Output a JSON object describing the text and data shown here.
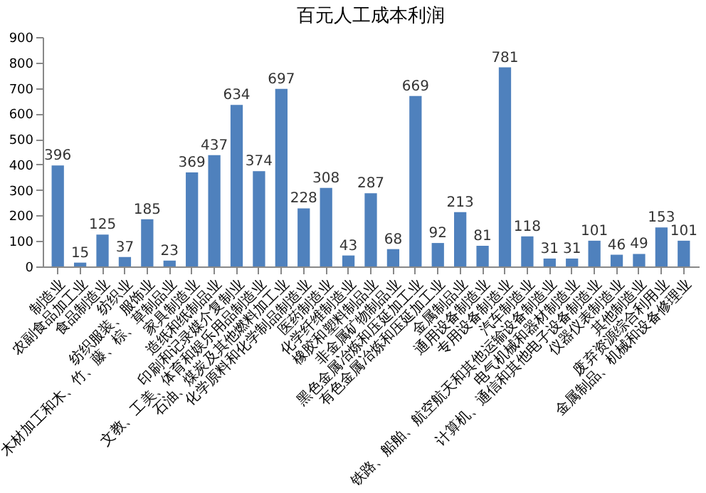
{
  "chart_data": {
    "type": "bar",
    "title": "百元人工成本利润",
    "categories": [
      "制造业",
      "农副食品加工业",
      "食品制造业",
      "纺织业",
      "纺织服装、服饰业",
      "木材加工和木、竹、藤、棕、草制品业",
      "家具制造业",
      "造纸和纸制品业",
      "印刷和记录媒介复制业",
      "文教、工美、体育和娱乐用品制造业",
      "石油、煤炭及其他燃料加工业",
      "化学原料和化学制品制造业",
      "医药制造业",
      "化学纤维制造业",
      "橡胶和塑料制品业",
      "非金属矿物制品业",
      "黑色金属冶炼和压延加工业",
      "有色金属冶炼和压延加工业",
      "金属制品业",
      "通用设备制造业",
      "专用设备制造业",
      "汽车制造业",
      "铁路、船舶、航空航天和其他运输设备制造业",
      "电气机械和器材制造业",
      "计算机、通信和其他电子设备制造业",
      "仪器仪表制造业",
      "其他制造业",
      "废弃资源综合利用业",
      "金属制品、机械和设备修理业"
    ],
    "values": [
      396,
      15,
      125,
      37,
      185,
      23,
      369,
      437,
      634,
      374,
      697,
      228,
      308,
      43,
      287,
      68,
      669,
      92,
      213,
      81,
      781,
      118,
      31,
      31,
      101,
      46,
      49,
      153,
      101
    ],
    "color": "#4f81bd",
    "ylim": [
      0,
      900
    ],
    "yticks": [
      0,
      100,
      200,
      300,
      400,
      500,
      600,
      700,
      800,
      900
    ],
    "grid": false,
    "data_labels": true
  }
}
